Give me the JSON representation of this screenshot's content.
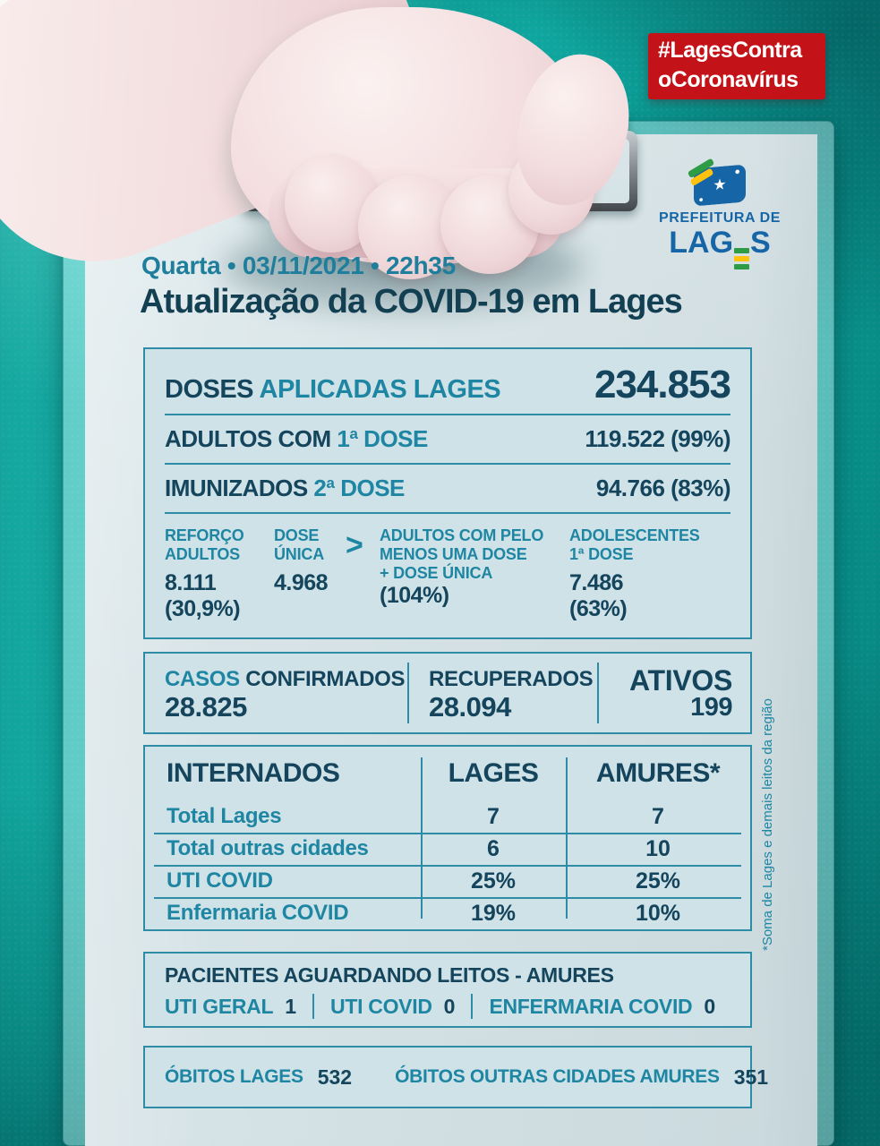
{
  "colors": {
    "accent_teal": "#1E86A2",
    "dark_text": "#14455C",
    "badge_red": "#C41318",
    "background_teal": "#0FB3AA",
    "paper": "#D8E4E7",
    "panel_bg": "#CFE2E8",
    "panel_border": "#2E8CA7",
    "logo_blue": "#1666A7",
    "logo_green": "#2E9C44",
    "logo_yellow": "#FFC20E"
  },
  "badge": {
    "line1": "#LagesContra",
    "line2": "oCoronavírus"
  },
  "logo": {
    "org_line": "PREFEITURA DE",
    "city_pre": "LAG",
    "city_post": "S",
    "flag_star": "★"
  },
  "header": {
    "date_line": "Quarta • 03/11/2021 • 22h35",
    "title": "Atualização da COVID-19 em Lages"
  },
  "doses": {
    "head_dark": "DOSES",
    "head_teal": "APLICADAS LAGES",
    "total": "234.853",
    "row1_dark": "ADULTOS COM",
    "row1_teal": "1ª DOSE",
    "row1_value": "119.522 (99%)",
    "row2_dark": "IMUNIZADOS",
    "row2_teal": "2ª DOSE",
    "row2_value": "94.766 (83%)",
    "gt": ">",
    "breakdown": [
      {
        "l1": "REFORÇO",
        "l2": "ADULTOS",
        "v1": "8.111",
        "v2": "(30,9%)"
      },
      {
        "l1": "DOSE",
        "l2": "ÚNICA",
        "v1": "4.968",
        "v2": ""
      },
      {
        "l1": "ADULTOS COM PELO",
        "l2": "MENOS UMA DOSE",
        "l3": "+ DOSE ÚNICA",
        "v1": "(104%)",
        "v2": ""
      },
      {
        "l1": "ADOLESCENTES",
        "l2": "1ª DOSE",
        "v1": "7.486",
        "v2": "(63%)"
      }
    ]
  },
  "cases": {
    "confirmed_teal": "CASOS",
    "confirmed_dark": "CONFIRMADOS",
    "confirmed_value": "28.825",
    "recovered_label": "RECUPERADOS",
    "recovered_value": "28.094",
    "active_label": "ATIVOS",
    "active_value": "199"
  },
  "inpatients": {
    "title": "INTERNADOS",
    "col_lages": "LAGES",
    "col_amures": "AMURES*",
    "rows": [
      {
        "label": "Total Lages",
        "lages": "7",
        "amures": "7"
      },
      {
        "label": "Total outras cidades",
        "lages": "6",
        "amures": "10"
      },
      {
        "label": "UTI COVID",
        "lages": "25%",
        "amures": "25%"
      },
      {
        "label": "Enfermaria COVID",
        "lages": "19%",
        "amures": "10%"
      }
    ],
    "footnote": "*Soma de Lages e demais leitos da região"
  },
  "waiting": {
    "title": "PACIENTES AGUARDANDO LEITOS - AMURES",
    "items": [
      {
        "label": "UTI GERAL",
        "value": "1"
      },
      {
        "label": "UTI COVID",
        "value": "0"
      },
      {
        "label": "ENFERMARIA COVID",
        "value": "0"
      }
    ]
  },
  "deaths": {
    "lages_label": "ÓBITOS LAGES",
    "lages_value": "532",
    "other_label": "ÓBITOS OUTRAS CIDADES AMURES",
    "other_value": "351"
  }
}
